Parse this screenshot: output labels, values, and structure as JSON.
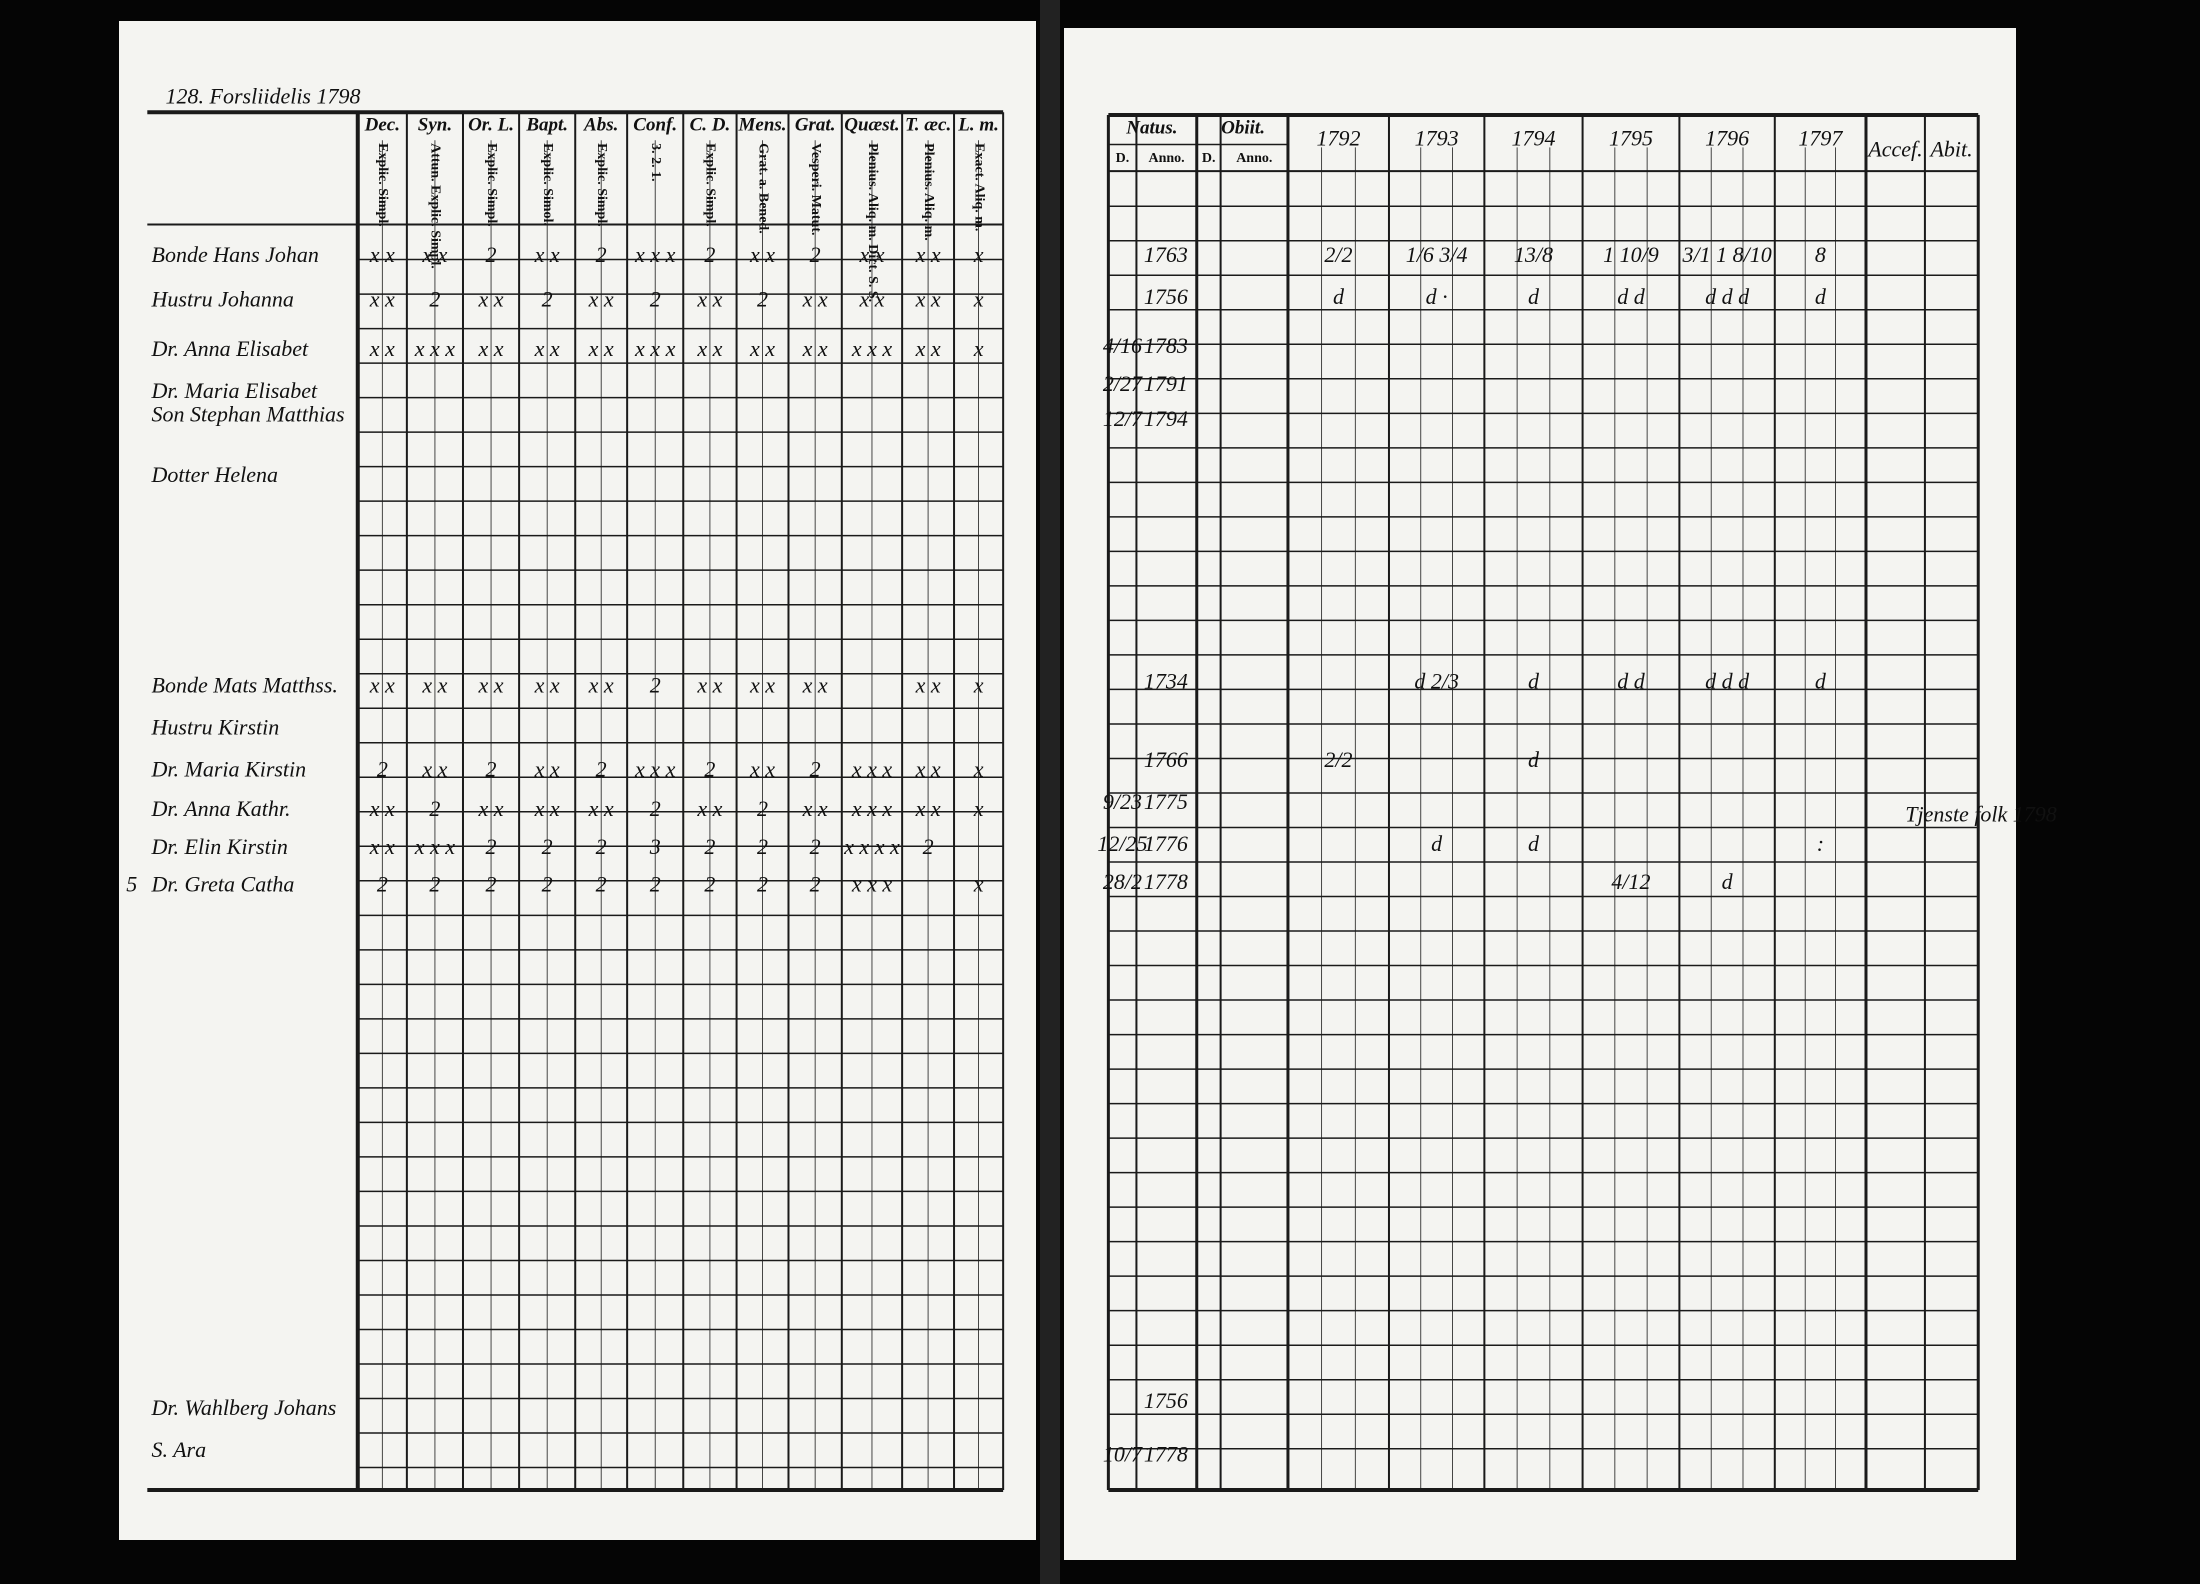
{
  "left_page": {
    "header": "128. Forsliidelis 1798",
    "margin_note": "5",
    "columns": [
      {
        "title": "Dec.",
        "sub": "Explic. Simpl."
      },
      {
        "title": "Syn.",
        "sub": "Attun. Explic. Simpl."
      },
      {
        "title": "Or. L.",
        "sub": "Explic. Simpl."
      },
      {
        "title": "Bapt.",
        "sub": "Explic. Simol."
      },
      {
        "title": "Abs.",
        "sub": "Explic. Simpl."
      },
      {
        "title": "Conf.",
        "sub": "3. 2. 1."
      },
      {
        "title": "C. D.",
        "sub": "Explic. Simpl."
      },
      {
        "title": "Mens.",
        "sub": "Grat. a. Bened."
      },
      {
        "title": "Grat.",
        "sub": "Vesperi. Matut."
      },
      {
        "title": "Quæst.",
        "sub": "Plenius. Aliq. m. Dict. S. S."
      },
      {
        "title": "T. æc.",
        "sub": "Plenius. Aliq. m."
      },
      {
        "title": "L. m.",
        "sub": "Exact. Aliq. m."
      }
    ],
    "rows": [
      {
        "name": "Bonde Hans Johan",
        "cells": [
          "x x",
          "x x",
          "2",
          "x x",
          "2",
          "x x x",
          "2",
          "x x",
          "2",
          "x x",
          "x x",
          "x"
        ]
      },
      {
        "name": "Hustru Johanna",
        "cells": [
          "x x",
          "2",
          "x x",
          "2",
          "x x",
          "2",
          "x x",
          "2",
          "x x",
          "x x",
          "x x",
          "x"
        ]
      },
      {
        "name": "Dr. Anna Elisabet",
        "cells": [
          "x x",
          "x x x",
          "x x",
          "x x",
          "x x",
          "x x x",
          "x x",
          "x x",
          "x x",
          "x x x",
          "x x",
          "x"
        ]
      },
      {
        "name": "Dr. Maria Elisabet"
      },
      {
        "name": "Son Stephan Matthias"
      },
      {
        "name": "Dotter Helena"
      },
      {
        "name": "Bonde Mats Matthss.",
        "cells": [
          "x x",
          "x x",
          "x x",
          "x x",
          "x x",
          "2",
          "x x",
          "x x",
          "x x",
          null,
          "x x",
          "x"
        ]
      },
      {
        "name": "Hustru Kirstin"
      },
      {
        "name": "Dr. Maria Kirstin",
        "cells": [
          "2",
          "x x",
          "2",
          "x x",
          "2",
          "x x x",
          "2",
          "x x",
          "2",
          "x x x",
          "x x",
          "x"
        ]
      },
      {
        "name": "Dr. Anna Kathr.",
        "cells": [
          "x x",
          "2",
          "x x",
          "x x",
          "x x",
          "2",
          "x x",
          "2",
          "x x",
          "x x x",
          "x x",
          "x"
        ]
      },
      {
        "name": "Dr. Elin Kirstin",
        "cells": [
          "x x",
          "x x x",
          "2",
          "2",
          "2",
          "3",
          "2",
          "2",
          "2",
          "x x x x",
          "2",
          null
        ]
      },
      {
        "name": "Dr. Greta Catha",
        "cells": [
          "2",
          "2",
          "2",
          "2",
          "2",
          "2",
          "2",
          "2",
          "2",
          "x x x",
          null,
          "x"
        ]
      },
      {
        "name": "Dr. Wahlberg Johans"
      },
      {
        "name": "S. Ara"
      }
    ]
  },
  "right_page": {
    "natus": "Natus.",
    "obiit": "Obiit.",
    "day": "D.",
    "anno": "Anno.",
    "years": [
      "1792",
      "1793",
      "1794",
      "1795",
      "1796",
      "1797"
    ],
    "accef": "Accef.",
    "abit": "Abit.",
    "margin_note": "Tjenste folk 1798",
    "rows": [
      {
        "day": null,
        "year": 1763,
        "marks": [
          "2/2",
          "1/6 3/4",
          "13/8",
          "1 10/9",
          "3/1 1 8/10",
          "8"
        ]
      },
      {
        "day": null,
        "year": 1756,
        "marks": [
          "d",
          "d ·",
          "d",
          "d d",
          "d d d",
          "d"
        ]
      },
      {
        "day": "4/16",
        "year": 1783
      },
      {
        "day": "2/27",
        "year": 1791
      },
      {
        "day": "12/7",
        "year": 1794
      },
      {
        "day": null,
        "year": 1734,
        "marks": [
          null,
          "d 2/3",
          "d",
          "d d",
          "d d d",
          "d"
        ]
      },
      {
        "day": null,
        "year": 1766,
        "marks": [
          "2/2",
          null,
          "d",
          null,
          null,
          null
        ]
      },
      {
        "day": "9/23",
        "year": 1775
      },
      {
        "day": "12/25",
        "year": 1776,
        "marks": [
          null,
          "d",
          "d",
          null,
          null,
          ":"
        ]
      },
      {
        "day": "28/2",
        "year": 1778,
        "marks": [
          null,
          null,
          null,
          "4/12",
          "d",
          null
        ]
      },
      {
        "day": null,
        "year": 1756
      },
      {
        "day": "10/7",
        "year": 1778
      }
    ]
  }
}
